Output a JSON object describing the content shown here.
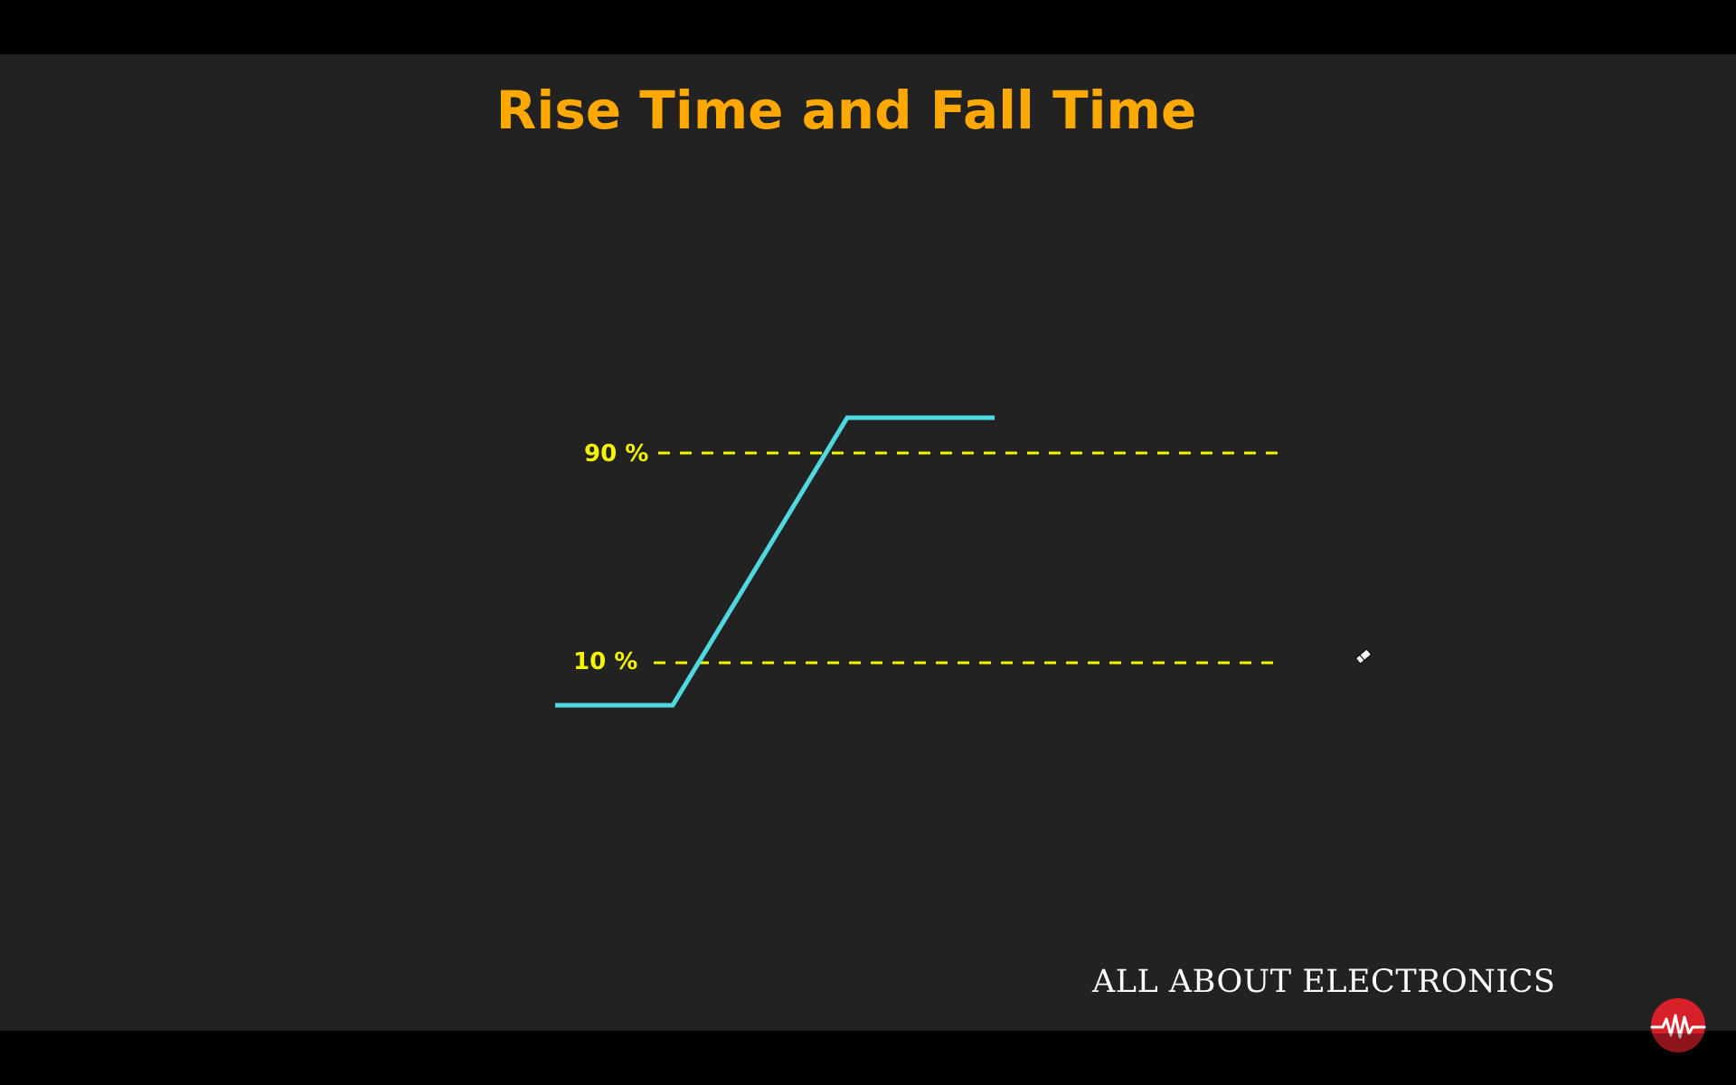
{
  "slide": {
    "title": "Rise Time and Fall Time",
    "brand": "ALL ABOUT ELECTRONICS"
  },
  "diagram": {
    "levels": [
      {
        "id": "upper",
        "label": "90 %"
      },
      {
        "id": "lower",
        "label": "10 %"
      }
    ],
    "waveform": {
      "description_type": "rising-edge",
      "low_level": 0,
      "high_level": 100,
      "threshold_upper_percent": 90,
      "threshold_lower_percent": 10
    }
  },
  "colors": {
    "background": "#222222",
    "letterbox": "#000000",
    "title": "#ffa800",
    "waveform": "#4fd8e0",
    "threshold_lines": "#f5f500",
    "brand_text": "#ffffff",
    "logo": "#d8202a"
  },
  "icons": {
    "logo": "waveform-logo-icon",
    "cursor": "eraser-cursor-icon"
  }
}
